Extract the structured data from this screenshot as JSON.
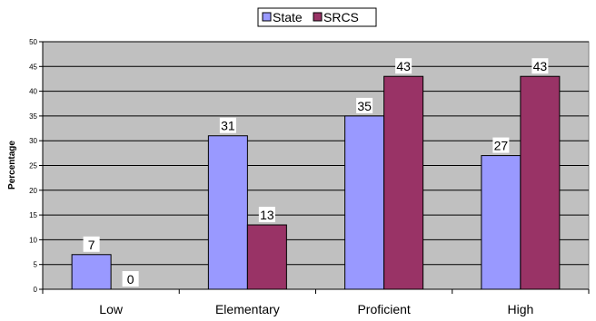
{
  "chart_data": {
    "type": "bar",
    "categories": [
      "Low",
      "Elementary",
      "Proficient",
      "High"
    ],
    "series": [
      {
        "name": "State",
        "values": [
          7,
          31,
          35,
          27
        ],
        "color": "#9999ff"
      },
      {
        "name": "SRCS",
        "values": [
          0,
          13,
          43,
          43
        ],
        "color": "#993366"
      }
    ],
    "ylabel": "Percentage",
    "xlabel": "",
    "ylim": [
      0,
      50
    ],
    "yticks": [
      0,
      5,
      10,
      15,
      20,
      25,
      30,
      35,
      40,
      45,
      50
    ],
    "grid": true,
    "legend": "top-center",
    "plot_background": "#c0c0c0"
  }
}
